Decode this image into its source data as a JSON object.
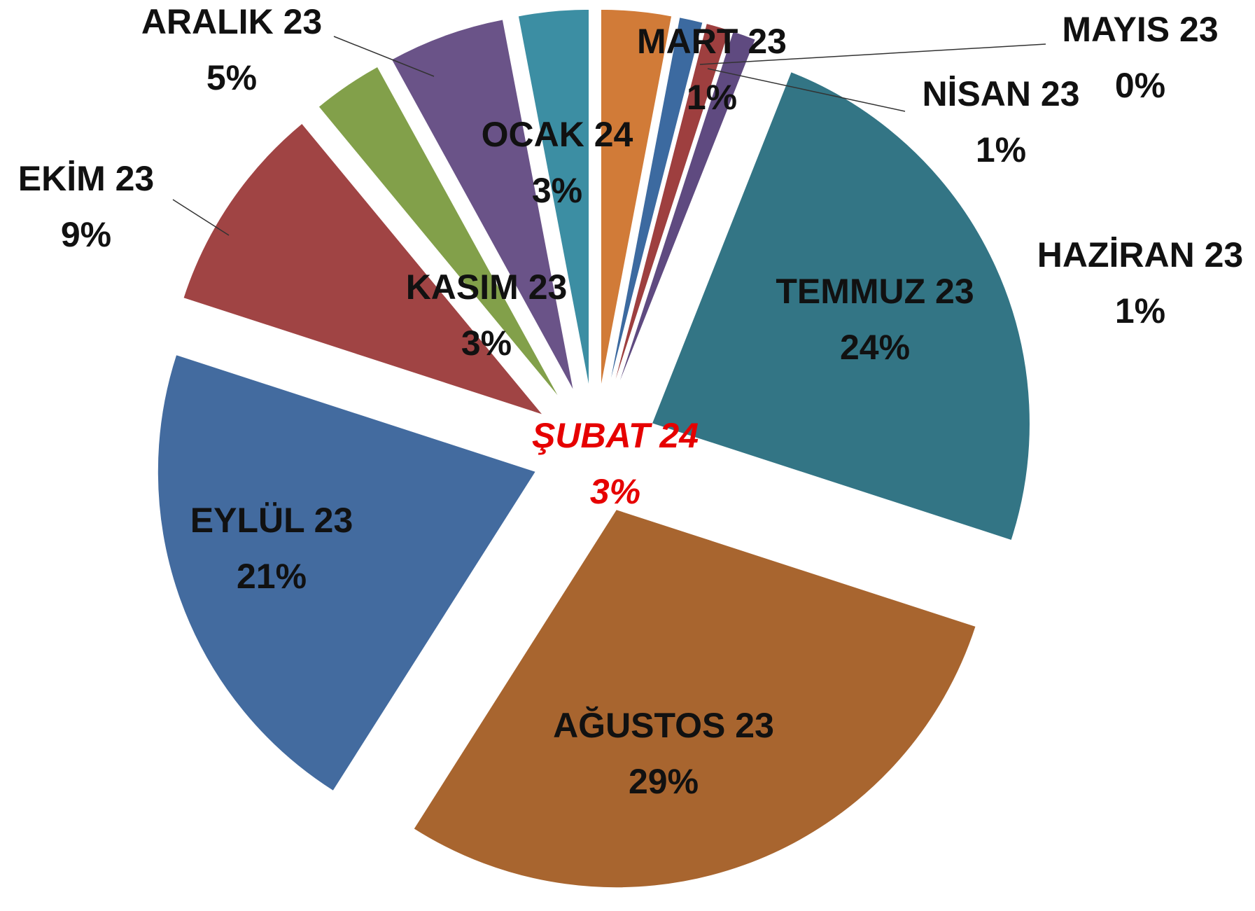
{
  "chart_data": {
    "type": "pie",
    "categories": [
      "MART 23",
      "NİSAN 23",
      "MAYIS 23",
      "HAZİRAN 23",
      "TEMMUZ 23",
      "AĞUSTOS 23",
      "EYLÜL 23",
      "EKİM 23",
      "KASIM 23",
      "ARALIK 23",
      "OCAK 24",
      "ŞUBAT 24"
    ],
    "values": [
      1,
      1,
      0,
      1,
      24,
      29,
      21,
      9,
      3,
      5,
      3,
      3
    ],
    "value_labels": [
      "1%",
      "1%",
      "0%",
      "1%",
      "24%",
      "29%",
      "21%",
      "9%",
      "3%",
      "5%",
      "3%",
      "3%"
    ],
    "colors": [
      "#3c6aa0",
      "#9e3f3f",
      "#7d9c48",
      "#5f4a80",
      "#337585",
      "#a8652f",
      "#436b9f",
      "#a04444",
      "#82a04a",
      "#6a5388",
      "#3c8ea3",
      "#d17b38"
    ]
  }
}
